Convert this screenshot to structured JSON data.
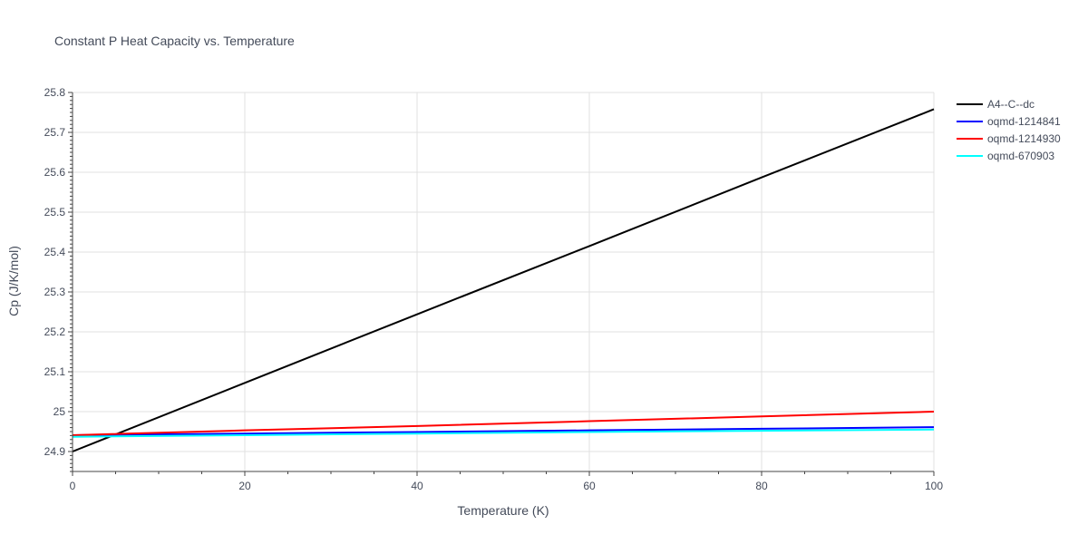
{
  "chart_data": {
    "type": "line",
    "title": "Constant P Heat Capacity vs. Temperature",
    "xlabel": "Temperature (K)",
    "ylabel": "Cp (J/K/mol)",
    "xlim": [
      0,
      100
    ],
    "ylim": [
      24.85,
      25.8
    ],
    "x_ticks": [
      0,
      20,
      40,
      60,
      80,
      100
    ],
    "y_ticks": [
      24.9,
      25,
      25.1,
      25.2,
      25.3,
      25.4,
      25.5,
      25.6,
      25.7,
      25.8
    ],
    "x_tick_labels": [
      "0",
      "20",
      "40",
      "60",
      "80",
      "100"
    ],
    "y_tick_labels": [
      "24.9",
      "25",
      "25.1",
      "25.2",
      "25.3",
      "25.4",
      "25.5",
      "25.6",
      "25.7",
      "25.8"
    ],
    "grid": true,
    "legend_position": "top-right-outside",
    "series": [
      {
        "name": "A4--C--dc",
        "color": "#000000",
        "x": [
          0,
          20,
          40,
          60,
          80,
          100
        ],
        "y": [
          24.9,
          25.072,
          25.244,
          25.415,
          25.587,
          25.758
        ]
      },
      {
        "name": "oqmd-1214841",
        "color": "#0000ff",
        "x": [
          0,
          20,
          40,
          60,
          80,
          100
        ],
        "y": [
          24.941,
          24.945,
          24.949,
          24.953,
          24.957,
          24.961
        ]
      },
      {
        "name": "oqmd-1214930",
        "color": "#ff0000",
        "x": [
          0,
          20,
          40,
          60,
          80,
          100
        ],
        "y": [
          24.941,
          24.953,
          24.964,
          24.976,
          24.988,
          25.0
        ]
      },
      {
        "name": "oqmd-670903",
        "color": "#00ffff",
        "x": [
          0,
          20,
          40,
          60,
          80,
          100
        ],
        "y": [
          24.937,
          24.941,
          24.945,
          24.949,
          24.952,
          24.955
        ]
      }
    ]
  }
}
